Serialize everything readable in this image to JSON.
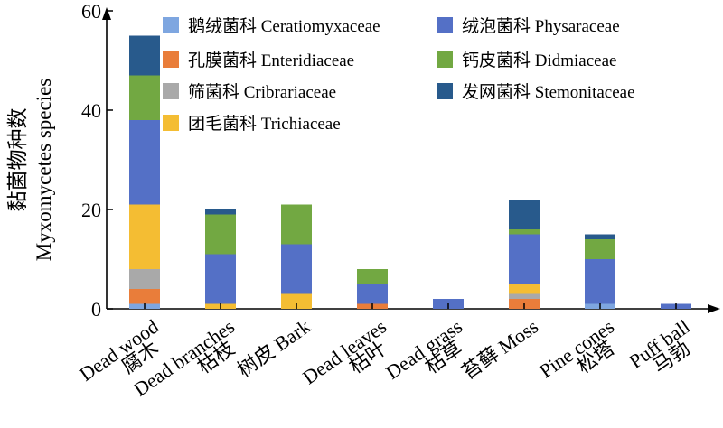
{
  "chart_data": {
    "type": "bar",
    "stacked": true,
    "ylabel": [
      "黏菌物种数",
      "Myxomycetes species"
    ],
    "ylim": [
      0,
      60
    ],
    "yticks": [
      "0",
      "20",
      "40",
      "60"
    ],
    "categories": [
      [
        "腐木",
        "Dead wood"
      ],
      [
        "枯枝",
        "Dead branches"
      ],
      [
        "树皮 Bark"
      ],
      [
        "枯叶",
        "Dead leaves"
      ],
      [
        "枯草",
        "Dead grass"
      ],
      [
        "苔藓 Moss"
      ],
      [
        "松塔",
        "Pine cones"
      ],
      [
        "马勃",
        "Puff ball"
      ]
    ],
    "series": [
      {
        "name": "鹅绒菌科 Ceratiomyxaceae",
        "color": "#7ea6e0",
        "values": [
          1,
          0,
          0,
          0,
          0,
          0,
          1,
          0
        ]
      },
      {
        "name": "孔膜菌科 Enteridiaceae",
        "color": "#e97d3a",
        "values": [
          3,
          0,
          0,
          1,
          0,
          2,
          0,
          0
        ]
      },
      {
        "name": "筛菌科 Cribrariaceae",
        "color": "#a9a9a9",
        "values": [
          4,
          0,
          0,
          0,
          0,
          1,
          0,
          0
        ]
      },
      {
        "name": "团毛菌科 Trichiaceae",
        "color": "#f4bd33",
        "values": [
          13,
          1,
          3,
          0,
          0,
          2,
          0,
          0
        ]
      },
      {
        "name": "绒泡菌科 Physaraceae",
        "color": "#5470c6",
        "values": [
          17,
          10,
          10,
          4,
          2,
          10,
          9,
          1
        ]
      },
      {
        "name": "钙皮菌科 Didmiaceae",
        "color": "#72a842",
        "values": [
          9,
          8,
          8,
          3,
          0,
          1,
          4,
          0
        ]
      },
      {
        "name": "发网菌科 Stemonitaceae",
        "color": "#285a8c",
        "values": [
          8,
          1,
          0,
          0,
          0,
          6,
          1,
          0
        ]
      }
    ],
    "legend": {
      "placement": "top-right",
      "columns": 2
    },
    "grid": false
  }
}
